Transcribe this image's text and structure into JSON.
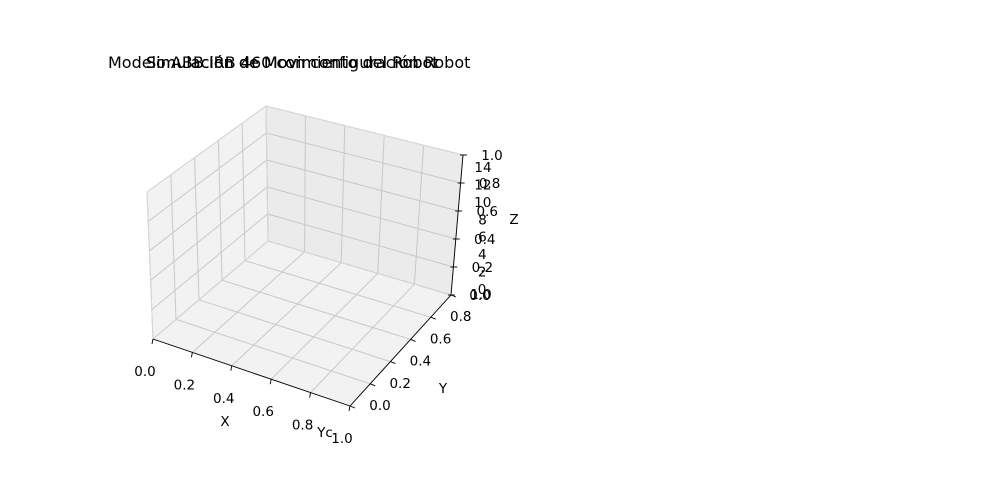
{
  "chart_data": {
    "type": "scatter",
    "projection": "3d",
    "titles": [
      "Modelo ABB IRB 460 con configuración Robot",
      "Simulación de Movimiento del Robot",
      "Simulación de Movimiento del Robot"
    ],
    "xlabel": "X",
    "ylabel": "Y",
    "zlabel": "Z",
    "xlim": [
      0.0,
      1.0
    ],
    "ylim": [
      0.0,
      1.0
    ],
    "zlim": [
      0.0,
      1.0
    ],
    "x_ticks": [
      "0.0",
      "0.2",
      "0.4",
      "0.6",
      "0.8",
      "1.0"
    ],
    "y_ticks": [
      "0.0",
      "0.2",
      "0.4",
      "0.6",
      "0.8",
      "1.0"
    ],
    "z_ticks": [
      "0.0",
      "0.2",
      "0.4",
      "0.6",
      "0.8",
      "1.0"
    ],
    "z_ticks_overlay": [
      "0",
      "2",
      "4",
      "6",
      "8",
      "10",
      "12",
      "14"
    ],
    "x_ticks_overlay_fragment": "Yc",
    "grid": true,
    "series": []
  }
}
